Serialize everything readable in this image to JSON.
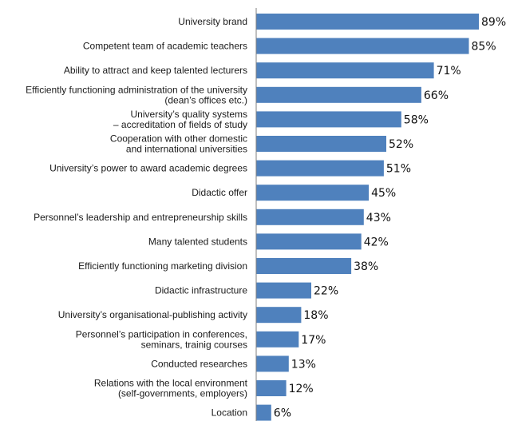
{
  "chart_data": {
    "type": "bar",
    "orientation": "horizontal",
    "title": "",
    "xlabel": "",
    "ylabel": "",
    "xlim": [
      0,
      89
    ],
    "grid": false,
    "legend": "none",
    "bar_color": "#4f81bd",
    "categories": [
      [
        "University brand"
      ],
      [
        "Competent team of academic teachers"
      ],
      [
        "Ability to attract and keep talented lecturers"
      ],
      [
        "Efficiently functioning administration of the university",
        "(dean’s offices etc.)"
      ],
      [
        "University’s quality systems",
        "– accreditation of fields of study"
      ],
      [
        "Cooperation with other domestic",
        "and international universities"
      ],
      [
        "University’s power to award academic degrees"
      ],
      [
        "Didactic offer"
      ],
      [
        "Personnel’s leadership and entrepreneurship skills"
      ],
      [
        "Many talented students"
      ],
      [
        "Efficiently functioning marketing division"
      ],
      [
        "Didactic infrastructure"
      ],
      [
        "University’s organisational-publishing activity"
      ],
      [
        "Personnel’s participation in conferences,",
        "seminars, trainig courses"
      ],
      [
        "Conducted researches"
      ],
      [
        "Relations with the local environment",
        "(self-governments, employers)"
      ],
      [
        "Location"
      ]
    ],
    "values": [
      89,
      85,
      71,
      66,
      58,
      52,
      51,
      45,
      43,
      42,
      38,
      22,
      18,
      17,
      13,
      12,
      6
    ],
    "value_labels": [
      "89%",
      "85%",
      "71%",
      "66%",
      "58%",
      "52%",
      "51%",
      "45%",
      "43%",
      "42%",
      "38%",
      "22%",
      "18%",
      "17%",
      "13%",
      "12%",
      "6%"
    ]
  }
}
